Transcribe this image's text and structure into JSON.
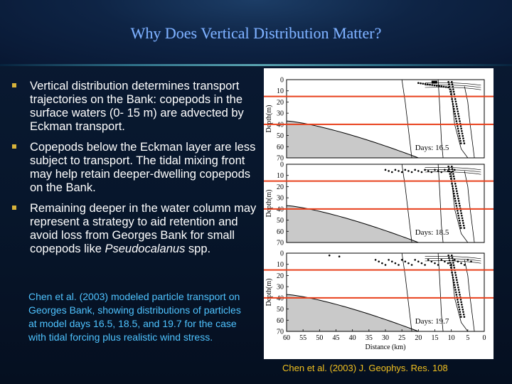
{
  "title": "Why Does Vertical Distribution Matter?",
  "bullets": [
    {
      "text": "Vertical distribution determines transport trajectories on the Bank: copepods in the surface waters (0- 15 m) are advected by Eckman transport."
    },
    {
      "text": "Copepods below the Eckman layer are less subject to transport.  The tidal mixing front may help retain deeper-dwelling copepods on the Bank."
    },
    {
      "text": "Remaining deeper in the water column may represent a strategy to aid retention and avoid loss from Georges Bank for small copepods like ",
      "italic": "Pseudocalanus",
      "suffix": " spp."
    }
  ],
  "caption": "Chen et al. (2003) modeled particle transport on Georges Bank, showing distributions of particles at model days 16.5, 18.5, and 19.7 for the case with tidal forcing plus realistic wind stress.",
  "citation": "Chen et al. (2003) J. Geophys. Res. 108",
  "figure": {
    "y_axis_label": "Depth(m)",
    "x_axis_label": "Distance (km)",
    "depth_ticks": [
      "0",
      "10",
      "20",
      "30",
      "40",
      "50",
      "60",
      "70"
    ],
    "distance_ticks": [
      "60",
      "55",
      "50",
      "45",
      "40",
      "35",
      "30",
      "25",
      "20",
      "15",
      "10",
      "5",
      "0"
    ],
    "panels": [
      {
        "label": "Days: 16.5"
      },
      {
        "label": "Days: 18.5"
      },
      {
        "label": "Days: 19.7"
      }
    ],
    "reference_lines_depth_m": [
      15,
      40
    ],
    "reference_line_color": "#e8401c"
  },
  "colors": {
    "title": "#7fb2ff",
    "bullet_marker": "#d8b33a",
    "caption": "#4fc3ff",
    "citation": "#f0c020"
  }
}
